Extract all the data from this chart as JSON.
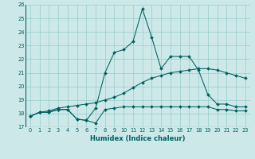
{
  "xlabel": "Humidex (Indice chaleur)",
  "bg_color": "#cce8e8",
  "grid_color": "#99cccc",
  "line_color": "#006060",
  "xlim": [
    -0.5,
    23.5
  ],
  "ylim": [
    17,
    26
  ],
  "xticks": [
    0,
    1,
    2,
    3,
    4,
    5,
    6,
    7,
    8,
    9,
    10,
    11,
    12,
    13,
    14,
    15,
    16,
    17,
    18,
    19,
    20,
    21,
    22,
    23
  ],
  "yticks": [
    17,
    18,
    19,
    20,
    21,
    22,
    23,
    24,
    25,
    26
  ],
  "line1_x": [
    0,
    1,
    2,
    3,
    4,
    5,
    6,
    7,
    8,
    9,
    10,
    11,
    12,
    13,
    14,
    15,
    16,
    17,
    18,
    19,
    20,
    21,
    22,
    23
  ],
  "line1_y": [
    17.8,
    18.1,
    18.1,
    18.3,
    18.3,
    17.6,
    17.5,
    17.3,
    18.3,
    18.4,
    18.5,
    18.5,
    18.5,
    18.5,
    18.5,
    18.5,
    18.5,
    18.5,
    18.5,
    18.5,
    18.3,
    18.3,
    18.2,
    18.2
  ],
  "line2_x": [
    0,
    1,
    2,
    3,
    4,
    5,
    6,
    7,
    8,
    9,
    10,
    11,
    12,
    13,
    14,
    15,
    16,
    17,
    18,
    19,
    20,
    21,
    22,
    23
  ],
  "line2_y": [
    17.8,
    18.1,
    18.1,
    18.3,
    18.3,
    17.6,
    17.5,
    18.4,
    21.0,
    22.5,
    22.7,
    23.3,
    25.7,
    23.6,
    21.3,
    22.2,
    22.2,
    22.2,
    21.2,
    19.4,
    18.7,
    18.7,
    18.5,
    18.5
  ],
  "line3_x": [
    0,
    1,
    2,
    3,
    4,
    5,
    6,
    7,
    8,
    9,
    10,
    11,
    12,
    13,
    14,
    15,
    16,
    17,
    18,
    19,
    20,
    21,
    22,
    23
  ],
  "line3_y": [
    17.8,
    18.1,
    18.2,
    18.4,
    18.5,
    18.6,
    18.7,
    18.8,
    19.0,
    19.2,
    19.5,
    19.9,
    20.3,
    20.6,
    20.8,
    21.0,
    21.1,
    21.2,
    21.3,
    21.3,
    21.2,
    21.0,
    20.8,
    20.6
  ]
}
